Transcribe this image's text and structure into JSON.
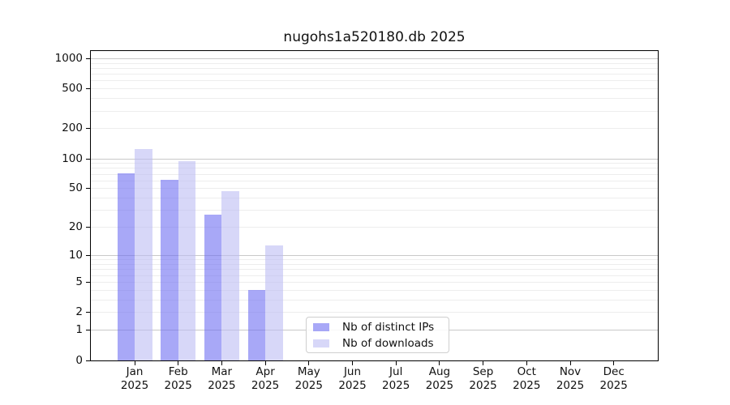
{
  "chart_data": {
    "type": "bar",
    "title": "nugohs1a520180.db 2025",
    "categories": [
      "Jan 2025",
      "Feb 2025",
      "Mar 2025",
      "Apr 2025",
      "May 2025",
      "Jun 2025",
      "Jul 2025",
      "Aug 2025",
      "Sep 2025",
      "Oct 2025",
      "Nov 2025",
      "Dec 2025"
    ],
    "series": [
      {
        "name": "Nb of distinct IPs",
        "color": "#6e6ef2",
        "opacity": 0.6,
        "values": [
          72,
          62,
          27,
          4,
          0,
          0,
          0,
          0,
          0,
          0,
          0,
          0
        ]
      },
      {
        "name": "Nb of downloads",
        "color": "#bcbcf4",
        "opacity": 0.6,
        "values": [
          125,
          95,
          47,
          13,
          0,
          0,
          0,
          0,
          0,
          0,
          0,
          0
        ]
      }
    ],
    "xlabel": "",
    "ylabel": "",
    "y_scale": "log1p",
    "y_ticks": [
      0,
      1,
      2,
      5,
      10,
      20,
      50,
      100,
      200,
      500,
      1000
    ],
    "ylim": [
      0,
      1200
    ],
    "grid": "both",
    "legend_position": "lower center"
  }
}
